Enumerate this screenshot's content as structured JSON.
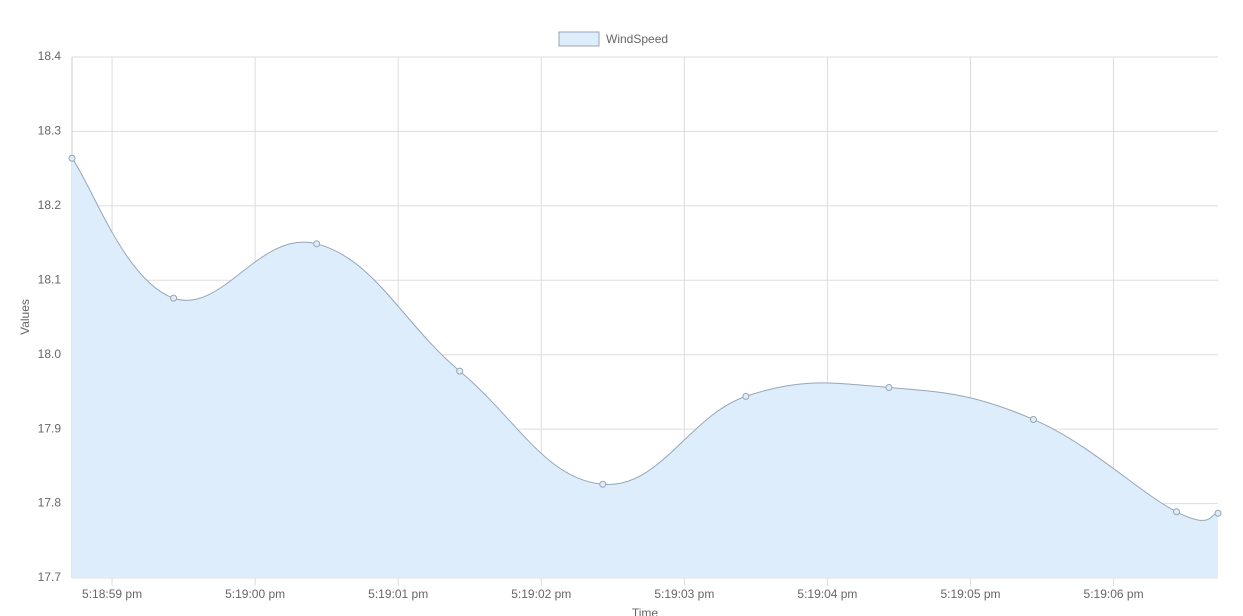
{
  "chart_data": {
    "type": "line",
    "xlabel": "Time",
    "ylabel": "Values",
    "x": [
      58.72,
      59.43,
      60.43,
      61.43,
      62.43,
      63.43,
      64.43,
      65.44,
      66.44,
      66.73
    ],
    "series": [
      {
        "name": "WindSpeed",
        "color": "#9aa5b1",
        "fill": "#ddedfc",
        "values": [
          18.264,
          18.076,
          18.149,
          17.978,
          17.826,
          17.944,
          17.956,
          17.913,
          17.789,
          17.787
        ]
      }
    ],
    "xlim": [
      58.72,
      66.73
    ],
    "xticks": [
      {
        "value": 59,
        "label": "5:18:59 pm"
      },
      {
        "value": 60,
        "label": "5:19:00 pm"
      },
      {
        "value": 61,
        "label": "5:19:01 pm"
      },
      {
        "value": 62,
        "label": "5:19:02 pm"
      },
      {
        "value": 63,
        "label": "5:19:03 pm"
      },
      {
        "value": 64,
        "label": "5:19:04 pm"
      },
      {
        "value": 65,
        "label": "5:19:05 pm"
      },
      {
        "value": 66,
        "label": "5:19:06 pm"
      }
    ],
    "ylim": [
      17.7,
      18.4
    ],
    "yticks": [
      {
        "value": 17.7,
        "label": "17.7"
      },
      {
        "value": 17.8,
        "label": "17.8"
      },
      {
        "value": 17.9,
        "label": "17.9"
      },
      {
        "value": 18.0,
        "label": "18.0"
      },
      {
        "value": 18.1,
        "label": "18.1"
      },
      {
        "value": 18.2,
        "label": "18.2"
      },
      {
        "value": 18.3,
        "label": "18.3"
      },
      {
        "value": 18.4,
        "label": "18.4"
      }
    ],
    "grid": true,
    "legend": "top"
  }
}
